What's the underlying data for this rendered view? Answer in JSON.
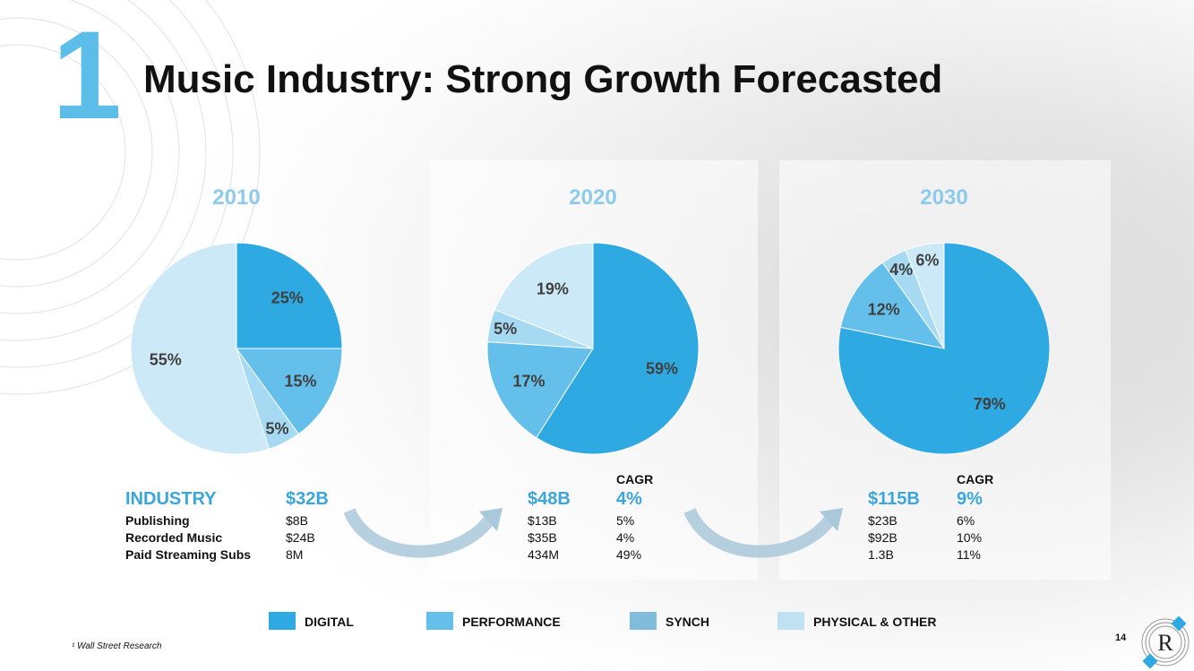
{
  "header": {
    "number": "1",
    "title": "Music Industry: Strong Growth Forecasted"
  },
  "colors": {
    "digital": "#2ea9e2",
    "performance": "#65bfeb",
    "synch": "#a5daf2",
    "physical": "#cce9f7"
  },
  "chart_data": [
    {
      "type": "pie",
      "title": "2010",
      "series": [
        {
          "name": "DIGITAL",
          "value": 25,
          "label": "25%"
        },
        {
          "name": "PERFORMANCE",
          "value": 15,
          "label": "15%"
        },
        {
          "name": "SYNCH",
          "value": 5,
          "label": "5%"
        },
        {
          "name": "PHYSICAL & OTHER",
          "value": 55,
          "label": "55%"
        }
      ]
    },
    {
      "type": "pie",
      "title": "2020",
      "series": [
        {
          "name": "DIGITAL",
          "value": 59,
          "label": "59%"
        },
        {
          "name": "PERFORMANCE",
          "value": 17,
          "label": "17%"
        },
        {
          "name": "SYNCH",
          "value": 5,
          "label": "5%"
        },
        {
          "name": "PHYSICAL & OTHER",
          "value": 19,
          "label": "19%"
        }
      ]
    },
    {
      "type": "pie",
      "title": "2030",
      "series": [
        {
          "name": "DIGITAL",
          "value": 79,
          "label": "79%"
        },
        {
          "name": "PERFORMANCE",
          "value": 12,
          "label": "12%"
        },
        {
          "name": "SYNCH",
          "value": 4,
          "label": "4%"
        },
        {
          "name": "PHYSICAL & OTHER",
          "value": 6,
          "label": "6%"
        }
      ]
    }
  ],
  "table": {
    "rows": {
      "industry": "INDUSTRY",
      "publishing": "Publishing",
      "recorded": "Recorded Music",
      "streaming": "Paid Streaming Subs"
    },
    "y2010": {
      "industry": "$32B",
      "publishing": "$8B",
      "recorded": "$24B",
      "streaming": "8M"
    },
    "y2020": {
      "industry": "$48B",
      "publishing": "$13B",
      "recorded": "$35B",
      "streaming": "434M",
      "cagr_header": "CAGR",
      "cagr_industry": "4%",
      "cagr_publishing": "5%",
      "cagr_recorded": "4%",
      "cagr_streaming": "49%"
    },
    "y2030": {
      "industry": "$115B",
      "publishing": "$23B",
      "recorded": "$92B",
      "streaming": "1.3B",
      "cagr_header": "CAGR",
      "cagr_industry": "9%",
      "cagr_publishing": "6%",
      "cagr_recorded": "10%",
      "cagr_streaming": "11%"
    }
  },
  "legend": [
    "DIGITAL",
    "PERFORMANCE",
    "SYNCH",
    "PHYSICAL & OTHER"
  ],
  "footnote": "¹ Wall Street Research",
  "page_number": "14",
  "logo_letter": "R"
}
